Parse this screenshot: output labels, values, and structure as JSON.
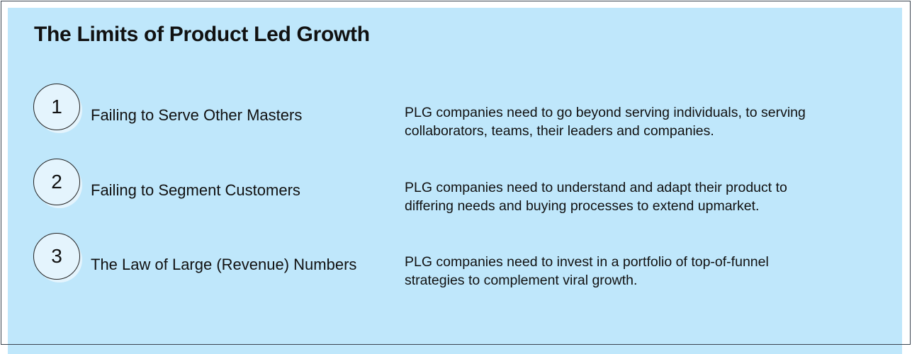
{
  "title": "The Limits of Product Led Growth",
  "items": [
    {
      "number": "1",
      "label": "Failing to Serve Other Masters",
      "description": [
        "PLG companies need to go beyond serving individuals, to serving",
        "collaborators, teams, their leaders and companies."
      ]
    },
    {
      "number": "2",
      "label": "Failing to Segment Customers",
      "description": [
        "PLG companies need to understand and adapt their product to",
        "differing needs and buying processes to extend upmarket."
      ]
    },
    {
      "number": "3",
      "label": "The Law of Large (Revenue) Numbers",
      "description": [
        "PLG companies need to invest in a portfolio of top-of-funnel",
        "strategies to complement viral growth."
      ]
    }
  ]
}
